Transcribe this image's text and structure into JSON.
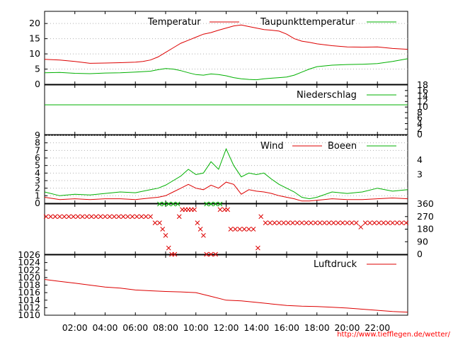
{
  "source_url": "http://www.tiefflegen.de/wetter/",
  "colors": {
    "red": "#dd0000",
    "green": "#00b000",
    "grid": "#b0b0b0",
    "source": "#ff0000"
  },
  "chart_data": [
    {
      "type": "line",
      "title": "",
      "x_labels": [
        "02:00",
        "04:00",
        "06:00",
        "08:00",
        "10:00",
        "12:00",
        "14:00",
        "16:00",
        "18:00",
        "20:00",
        "22:00"
      ],
      "x_hours": [
        2,
        4,
        6,
        8,
        10,
        12,
        14,
        16,
        18,
        20,
        22
      ],
      "xlim": [
        0,
        24
      ],
      "ylim": [
        0,
        24
      ],
      "yticks": [
        0,
        5,
        10,
        15,
        20
      ],
      "legend": [
        "Temperatur",
        "Taupunkttemperatur"
      ],
      "series": [
        {
          "name": "Temperatur",
          "color": "red",
          "x": [
            0,
            1,
            2,
            3,
            4,
            5,
            6,
            6.5,
            7,
            7.5,
            8,
            8.5,
            9,
            9.5,
            10,
            10.5,
            11,
            11.5,
            12,
            12.5,
            13,
            13.5,
            14,
            14.5,
            15,
            15.5,
            16,
            16.5,
            17,
            17.5,
            18,
            19,
            20,
            21,
            22,
            23,
            24
          ],
          "y": [
            8.2,
            8.0,
            7.5,
            6.9,
            7.0,
            7.1,
            7.3,
            7.5,
            8.0,
            9.0,
            10.5,
            12.0,
            13.5,
            14.5,
            15.5,
            16.5,
            17.0,
            17.8,
            18.5,
            19.2,
            19.5,
            19.0,
            18.5,
            18.0,
            17.8,
            17.5,
            16.5,
            15.0,
            14.2,
            13.8,
            13.3,
            12.7,
            12.3,
            12.2,
            12.3,
            11.8,
            11.5
          ]
        },
        {
          "name": "Taupunkttemperatur",
          "color": "green",
          "x": [
            0,
            1,
            2,
            3,
            4,
            5,
            6,
            7,
            7.5,
            8,
            8.5,
            9,
            9.5,
            10,
            10.5,
            11,
            11.5,
            12,
            12.5,
            13,
            13.5,
            14,
            14.5,
            15,
            15.5,
            16,
            16.5,
            17,
            17.5,
            18,
            19,
            20,
            21,
            22,
            23,
            24
          ],
          "y": [
            3.8,
            3.9,
            3.6,
            3.5,
            3.7,
            3.8,
            4.0,
            4.3,
            4.8,
            5.2,
            5.0,
            4.5,
            3.8,
            3.2,
            3.0,
            3.4,
            3.2,
            2.8,
            2.2,
            1.8,
            1.6,
            1.5,
            1.8,
            2.0,
            2.2,
            2.4,
            3.0,
            4.0,
            5.0,
            5.8,
            6.3,
            6.5,
            6.6,
            6.8,
            7.5,
            8.4
          ]
        }
      ]
    },
    {
      "type": "line",
      "legend": [
        "Niederschlag"
      ],
      "xlim": [
        0,
        24
      ],
      "ylim": [
        0,
        18
      ],
      "yticks_right": [
        0,
        2,
        4,
        6,
        8,
        10,
        12,
        14,
        16,
        18
      ],
      "series": [
        {
          "name": "Niederschlag",
          "color": "green",
          "x": [
            0,
            24
          ],
          "y": [
            10.8,
            10.8
          ]
        }
      ]
    },
    {
      "type": "line",
      "legend": [
        "Wind",
        "Boeen"
      ],
      "xlim": [
        0,
        24
      ],
      "ylim": [
        0,
        9
      ],
      "yticks": [
        0,
        1,
        2,
        3,
        4,
        5,
        6,
        7,
        8,
        9
      ],
      "yticks_right": [
        3,
        4
      ],
      "series": [
        {
          "name": "Wind",
          "color": "red",
          "x": [
            0,
            1,
            2,
            3,
            4,
            5,
            6,
            7,
            7.5,
            8,
            8.5,
            9,
            9.5,
            10,
            10.5,
            11,
            11.5,
            12,
            12.5,
            13,
            13.5,
            14,
            14.5,
            15,
            15.5,
            16,
            16.5,
            17,
            17.5,
            18,
            19,
            20,
            21,
            22,
            23,
            24
          ],
          "y": [
            0.8,
            0.5,
            0.6,
            0.5,
            0.6,
            0.6,
            0.5,
            0.7,
            0.8,
            1.0,
            1.5,
            2.0,
            2.5,
            2.0,
            1.8,
            2.4,
            2.0,
            2.8,
            2.5,
            1.2,
            1.8,
            1.6,
            1.5,
            1.3,
            1.0,
            0.8,
            0.6,
            0.3,
            0.3,
            0.4,
            0.6,
            0.5,
            0.5,
            0.6,
            0.7,
            0.6
          ]
        },
        {
          "name": "Boeen",
          "color": "green",
          "x": [
            0,
            1,
            2,
            3,
            4,
            5,
            6,
            7,
            7.5,
            8,
            8.5,
            9,
            9.5,
            10,
            10.5,
            11,
            11.5,
            12,
            12.5,
            13,
            13.5,
            14,
            14.5,
            15,
            15.5,
            16,
            16.5,
            17,
            17.5,
            18,
            19,
            20,
            21,
            22,
            23,
            24
          ],
          "y": [
            1.5,
            1.0,
            1.2,
            1.1,
            1.3,
            1.5,
            1.4,
            1.8,
            2.0,
            2.4,
            3.0,
            3.6,
            4.5,
            3.8,
            4.0,
            5.5,
            4.5,
            7.2,
            5.0,
            3.5,
            4.0,
            3.8,
            4.0,
            3.2,
            2.5,
            2.0,
            1.5,
            0.8,
            0.6,
            0.8,
            1.5,
            1.3,
            1.5,
            2.0,
            1.6,
            1.8
          ]
        }
      ]
    },
    {
      "type": "scatter",
      "title": "",
      "xlim": [
        0,
        24
      ],
      "ylim": [
        0,
        360
      ],
      "yticks_right": [
        0,
        90,
        180,
        270,
        360
      ],
      "series": [
        {
          "name": "direction",
          "color": "red",
          "x": [
            0.1,
            0.4,
            0.7,
            1.0,
            1.3,
            1.6,
            1.9,
            2.2,
            2.5,
            2.8,
            3.1,
            3.4,
            3.7,
            4.0,
            4.3,
            4.6,
            4.9,
            5.2,
            5.5,
            5.8,
            6.1,
            6.4,
            6.7,
            7.0,
            7.3,
            7.6,
            7.8,
            8.0,
            8.2,
            8.4,
            8.6,
            8.9,
            9.1,
            9.3,
            9.5,
            9.7,
            9.9,
            10.1,
            10.3,
            10.5,
            10.7,
            11.0,
            11.3,
            11.6,
            11.9,
            12.1,
            12.3,
            12.6,
            12.9,
            13.2,
            13.5,
            13.8,
            14.1,
            14.3,
            14.6,
            14.9,
            15.2,
            15.5,
            15.8,
            16.1,
            16.4,
            16.7,
            17.0,
            17.3,
            17.6,
            17.9,
            18.2,
            18.5,
            18.8,
            19.1,
            19.4,
            19.7,
            20.0,
            20.3,
            20.6,
            20.9,
            21.2,
            21.5,
            21.8,
            22.1,
            22.4,
            22.7,
            23.0,
            23.3,
            23.6,
            23.9
          ],
          "y": [
            270,
            270,
            270,
            270,
            270,
            270,
            270,
            270,
            270,
            270,
            270,
            270,
            270,
            270,
            270,
            270,
            270,
            270,
            270,
            270,
            270,
            270,
            270,
            270,
            225,
            225,
            180,
            135,
            45,
            0,
            0,
            270,
            320,
            320,
            320,
            320,
            320,
            225,
            180,
            135,
            0,
            0,
            0,
            320,
            320,
            320,
            180,
            180,
            180,
            180,
            180,
            180,
            45,
            270,
            225,
            225,
            225,
            225,
            225,
            225,
            225,
            225,
            225,
            225,
            225,
            225,
            225,
            225,
            225,
            225,
            225,
            225,
            225,
            225,
            225,
            195,
            225,
            225,
            225,
            225,
            225,
            225,
            225,
            225,
            225,
            225
          ]
        },
        {
          "name": "direction-green",
          "color": "green",
          "x": [
            7.6,
            7.9,
            8.2,
            8.5,
            8.8,
            10.7,
            11.0,
            11.3,
            11.6
          ],
          "y": [
            360,
            360,
            360,
            360,
            360,
            360,
            360,
            360,
            360
          ]
        }
      ]
    },
    {
      "type": "line",
      "legend": [
        "Luftdruck"
      ],
      "xlim": [
        0,
        24
      ],
      "ylim": [
        1010,
        1026
      ],
      "yticks": [
        1010,
        1012,
        1014,
        1016,
        1018,
        1020,
        1022,
        1024,
        1026
      ],
      "series": [
        {
          "name": "Luftdruck",
          "color": "red",
          "x": [
            0,
            1,
            2,
            3,
            4,
            5,
            6,
            7,
            8,
            9,
            10,
            11,
            12,
            13,
            14,
            15,
            16,
            17,
            18,
            19,
            20,
            21,
            22,
            23,
            24
          ],
          "y": [
            1019.5,
            1019.0,
            1018.5,
            1018.0,
            1017.5,
            1017.2,
            1016.7,
            1016.5,
            1016.3,
            1016.2,
            1016.0,
            1015.0,
            1014.0,
            1013.8,
            1013.4,
            1013.0,
            1012.6,
            1012.4,
            1012.3,
            1012.1,
            1011.9,
            1011.6,
            1011.3,
            1011.0,
            1010.8
          ]
        }
      ]
    }
  ]
}
